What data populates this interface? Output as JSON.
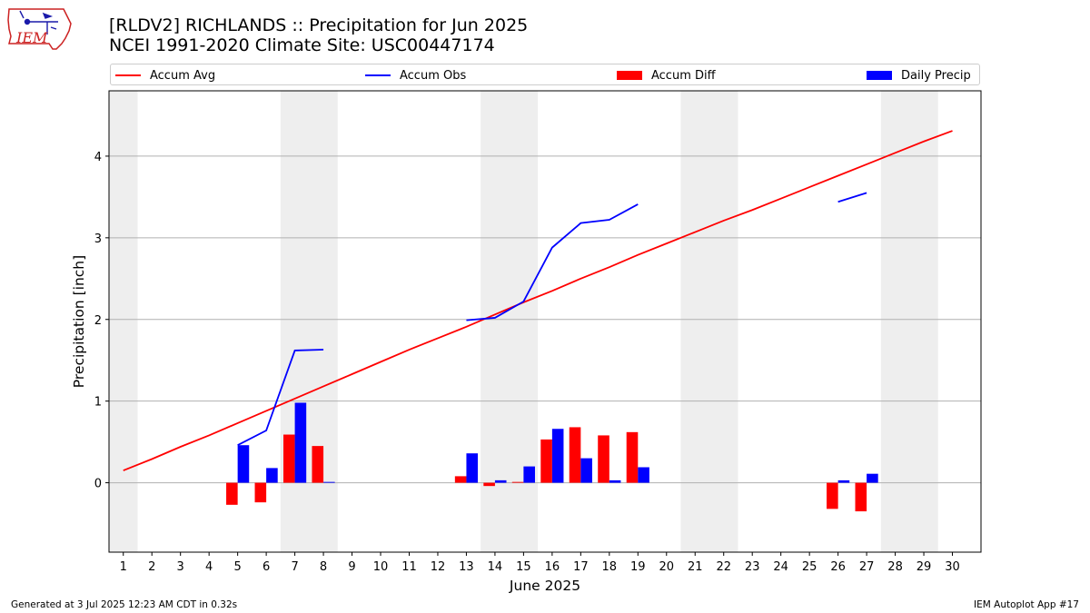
{
  "logo": {
    "text": "IEM"
  },
  "header": {
    "title": "[RLDV2] RICHLANDS :: Precipitation for Jun 2025",
    "subtitle": "NCEI 1991-2020 Climate Site: USC00447174"
  },
  "legend": [
    {
      "label": "Accum Avg",
      "kind": "line",
      "color": "#ff0000"
    },
    {
      "label": "Accum Obs",
      "kind": "line",
      "color": "#0000ff"
    },
    {
      "label": "Accum Diff",
      "kind": "bar",
      "color": "#ff0000"
    },
    {
      "label": "Daily Precip",
      "kind": "bar",
      "color": "#0000ff"
    }
  ],
  "footer": {
    "left": "Generated at 3 Jul 2025 12:23 AM CDT in 0.32s",
    "right": "IEM Autoplot App #17"
  },
  "chart_data": {
    "type": "bar",
    "xlabel": "June 2025",
    "ylabel": "Precipitation [inch]",
    "xlim": [
      0.5,
      31.0
    ],
    "ylim": [
      -0.85,
      4.8
    ],
    "yticks": [
      0,
      1,
      2,
      3,
      4
    ],
    "categories": [
      "1",
      "2",
      "3",
      "4",
      "5",
      "6",
      "7",
      "8",
      "9",
      "10",
      "11",
      "12",
      "13",
      "14",
      "15",
      "16",
      "17",
      "18",
      "19",
      "20",
      "21",
      "22",
      "23",
      "24",
      "25",
      "26",
      "27",
      "28",
      "29",
      "30"
    ],
    "weekend_shading": [
      [
        0.5,
        1.5
      ],
      [
        6.5,
        8.5
      ],
      [
        13.5,
        15.5
      ],
      [
        20.5,
        22.5
      ],
      [
        27.5,
        29.5
      ]
    ],
    "grid": "horizontal",
    "series": [
      {
        "name": "Accum Avg",
        "type": "line",
        "color": "#ff0000",
        "x": [
          1,
          2,
          3,
          4,
          5,
          6,
          7,
          8,
          9,
          10,
          11,
          12,
          13,
          14,
          15,
          16,
          17,
          18,
          19,
          20,
          21,
          22,
          23,
          24,
          25,
          26,
          27,
          28,
          29,
          30
        ],
        "values": [
          0.15,
          0.29,
          0.44,
          0.58,
          0.73,
          0.88,
          1.03,
          1.18,
          1.33,
          1.48,
          1.63,
          1.77,
          1.91,
          2.06,
          2.21,
          2.35,
          2.5,
          2.64,
          2.79,
          2.93,
          3.07,
          3.21,
          3.34,
          3.48,
          3.62,
          3.76,
          3.9,
          4.04,
          4.18,
          4.31
        ]
      },
      {
        "name": "Accum Obs",
        "type": "line",
        "color": "#0000ff",
        "segments": [
          {
            "x": [
              5,
              6,
              7,
              8
            ],
            "values": [
              0.46,
              0.64,
              1.62,
              1.63
            ]
          },
          {
            "x": [
              13,
              14,
              15,
              16,
              17,
              18,
              19
            ],
            "values": [
              1.99,
              2.02,
              2.22,
              2.88,
              3.18,
              3.22,
              3.41
            ]
          },
          {
            "x": [
              26,
              27
            ],
            "values": [
              3.44,
              3.55
            ]
          }
        ]
      },
      {
        "name": "Accum Diff",
        "type": "bar",
        "color": "#ff0000",
        "offset": -0.2,
        "x": [
          5,
          6,
          7,
          8,
          13,
          14,
          15,
          16,
          17,
          18,
          19,
          26,
          27
        ],
        "values": [
          -0.27,
          -0.24,
          0.59,
          0.45,
          0.08,
          -0.04,
          0.01,
          0.53,
          0.68,
          0.58,
          0.62,
          -0.32,
          -0.35
        ]
      },
      {
        "name": "Daily Precip",
        "type": "bar",
        "color": "#0000ff",
        "offset": 0.2,
        "x": [
          5,
          6,
          7,
          8,
          13,
          14,
          15,
          16,
          17,
          18,
          19,
          26,
          27
        ],
        "values": [
          0.46,
          0.18,
          0.98,
          0.01,
          0.36,
          0.03,
          0.2,
          0.66,
          0.3,
          0.03,
          0.19,
          0.03,
          0.11
        ]
      }
    ]
  }
}
